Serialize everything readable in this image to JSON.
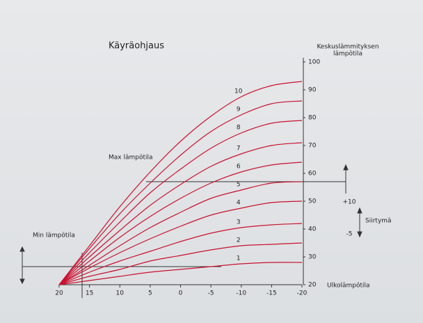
{
  "chart_data": {
    "type": "line",
    "title": "Käyräohjaus",
    "ylabel": [
      "Keskuslämmityksen",
      "lämpötila"
    ],
    "xlabel": "Ulkolämpötila",
    "annotations": {
      "max": "Max lämpötila",
      "min": "Min lämpötila",
      "shift": "Siirtymä",
      "shift_up": "+10",
      "shift_down": "-5"
    },
    "x": [
      20,
      15,
      10,
      5,
      0,
      -5,
      -10,
      -15,
      -20
    ],
    "xlim": [
      20,
      -20
    ],
    "xticks": [
      20,
      15,
      10,
      5,
      0,
      -5,
      -10,
      -15,
      -20
    ],
    "ylim": [
      20,
      100
    ],
    "yticks": [
      20,
      30,
      40,
      50,
      60,
      70,
      80,
      90,
      100
    ],
    "color": "#c8102e",
    "series": [
      {
        "name": "1",
        "values": [
          20,
          21.5,
          23,
          24.5,
          25.5,
          26.5,
          27.5,
          28,
          28
        ]
      },
      {
        "name": "2",
        "values": [
          20,
          23,
          25.5,
          28.5,
          30.5,
          32.5,
          34,
          34.5,
          35
        ]
      },
      {
        "name": "3",
        "values": [
          20,
          24.5,
          28.5,
          32,
          35.5,
          38.5,
          40.5,
          41.5,
          42
        ]
      },
      {
        "name": "4",
        "values": [
          20,
          26,
          31.5,
          36.5,
          41,
          45,
          47.5,
          49.5,
          50
        ]
      },
      {
        "name": "5",
        "values": [
          20,
          27,
          34,
          40.5,
          46,
          51,
          54,
          56.5,
          57
        ]
      },
      {
        "name": "6",
        "values": [
          20,
          28.5,
          37,
          44.5,
          51,
          56.5,
          60.5,
          63,
          64
        ]
      },
      {
        "name": "7",
        "values": [
          20,
          30,
          39.5,
          48.5,
          56,
          62.5,
          67,
          70,
          71
        ]
      },
      {
        "name": "8",
        "values": [
          20,
          31.5,
          42.5,
          53,
          61.5,
          69,
          74.5,
          78,
          79
        ]
      },
      {
        "name": "9",
        "values": [
          20,
          33,
          45.5,
          56.5,
          66.5,
          75,
          81,
          85,
          86
        ]
      },
      {
        "name": "10",
        "values": [
          20,
          34,
          48,
          60.5,
          71.5,
          80.5,
          87.5,
          91.5,
          93
        ]
      }
    ]
  }
}
